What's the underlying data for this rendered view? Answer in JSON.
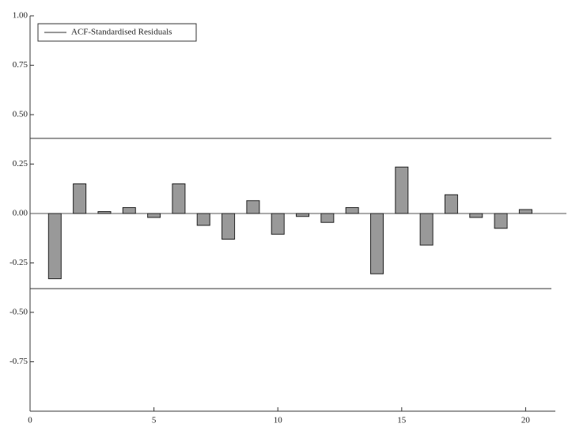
{
  "chart_data": {
    "type": "bar",
    "series": [
      {
        "name": "ACF-Standardised Residuals",
        "color": "#999999",
        "values": [
          -0.33,
          0.15,
          0.01,
          0.03,
          -0.02,
          0.15,
          -0.06,
          -0.13,
          0.065,
          -0.105,
          -0.015,
          -0.045,
          0.03,
          -0.305,
          0.235,
          -0.16,
          0.095,
          -0.02,
          -0.075,
          0.02
        ]
      }
    ],
    "x": [
      1,
      2,
      3,
      4,
      5,
      6,
      7,
      8,
      9,
      10,
      11,
      12,
      13,
      14,
      15,
      16,
      17,
      18,
      19,
      20
    ],
    "xlim": [
      0,
      21.2
    ],
    "xticks": [
      0,
      5,
      10,
      15,
      20
    ],
    "ylim": [
      -1,
      1
    ],
    "yticks": [
      {
        "value": -0.75,
        "label": "-0.75"
      },
      {
        "value": -0.5,
        "label": "-0.50"
      },
      {
        "value": -0.25,
        "label": "-0.25"
      },
      {
        "value": 0,
        "label": "0.00"
      },
      {
        "value": 0.25,
        "label": "0.25"
      },
      {
        "value": 0.5,
        "label": "0.50"
      },
      {
        "value": 0.75,
        "label": "0.75"
      },
      {
        "value": 1,
        "label": "1.00"
      }
    ],
    "confidence_bounds": [
      0.38,
      -0.38
    ],
    "legend": "top-left"
  }
}
